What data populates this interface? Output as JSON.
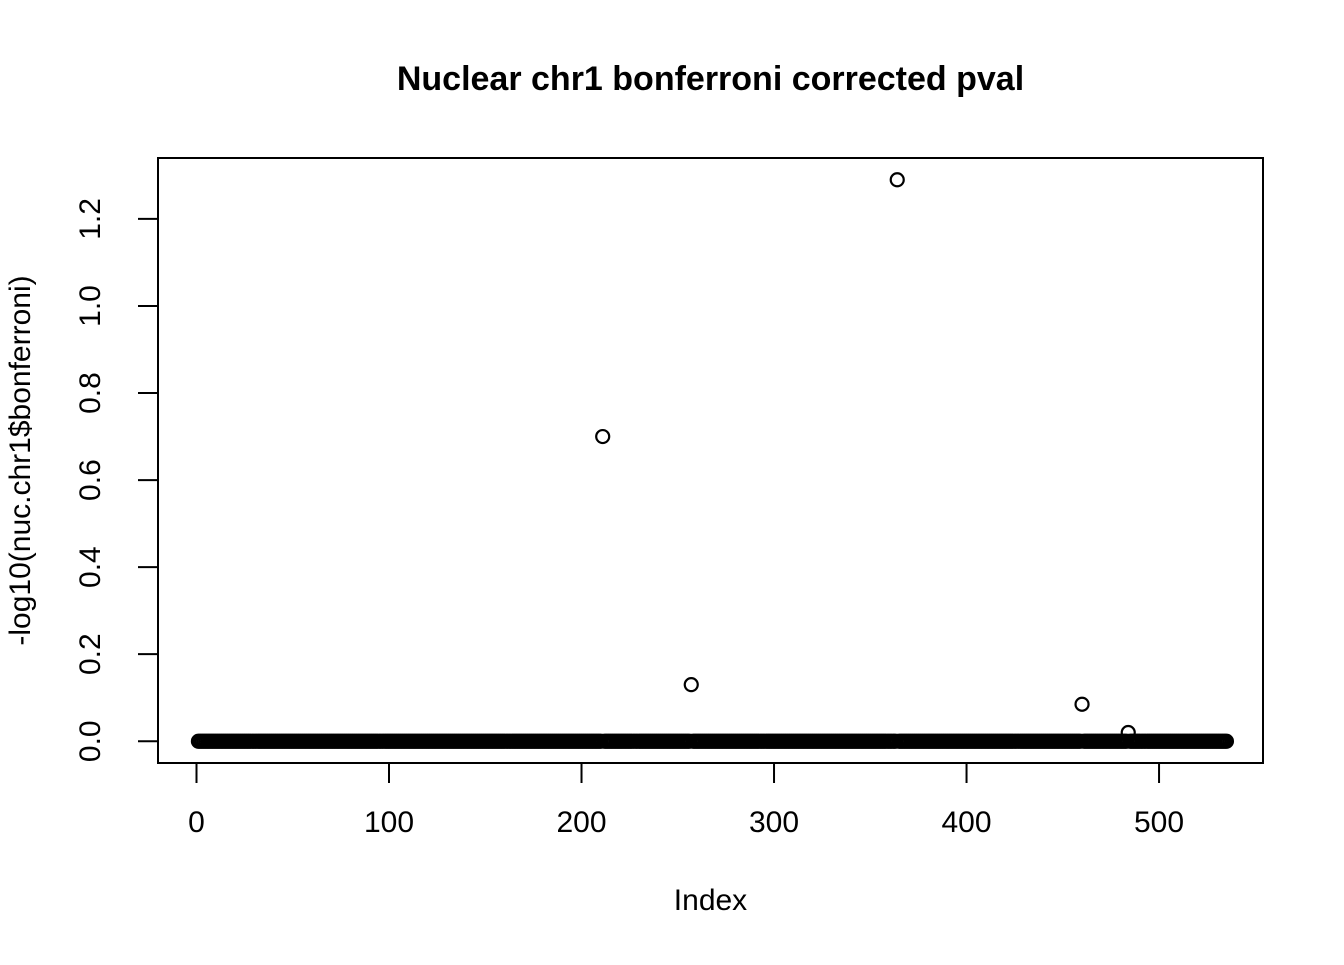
{
  "page": {
    "background_color": "#ffffff",
    "foreground_color": "#000000"
  },
  "chart_data": {
    "type": "scatter",
    "title": "Nuclear chr1 bonferroni corrected pval",
    "xlabel": "Index",
    "ylabel": "-log10(nuc.chr1$bonferroni)",
    "x_ticks": [
      0,
      100,
      200,
      300,
      400,
      500
    ],
    "y_ticks": [
      0.0,
      0.2,
      0.4,
      0.6,
      0.8,
      1.0,
      1.2
    ],
    "xlim": [
      -20,
      554
    ],
    "ylim": [
      -0.05,
      1.34
    ],
    "grid": false,
    "legend": null,
    "point_style": {
      "marker": "open-circle",
      "color": "#000000",
      "radius_px": 6.5,
      "stroke_px": 2.2
    },
    "series": [
      {
        "name": "bonferroni -log10 p-values",
        "description": "dense baseline band: one point per index, all at y = 0",
        "x_start": 1,
        "x_end": 535,
        "y": 0
      }
    ],
    "outliers": [
      {
        "x": 211,
        "y": 0.7
      },
      {
        "x": 257,
        "y": 0.13
      },
      {
        "x": 364,
        "y": 1.29
      },
      {
        "x": 460,
        "y": 0.085
      },
      {
        "x": 484,
        "y": 0.02
      }
    ]
  }
}
